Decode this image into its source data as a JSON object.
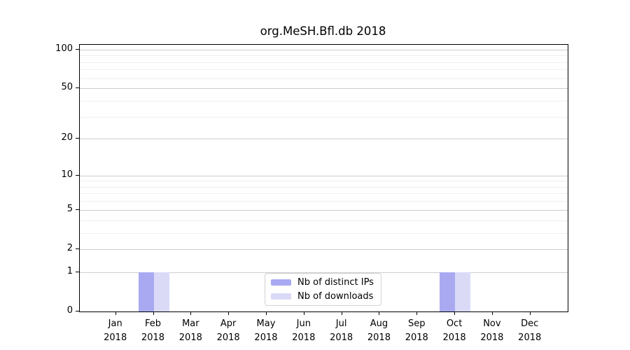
{
  "title": "org.MeSH.Bfl.db 2018",
  "chart_data": {
    "type": "bar",
    "title": "org.MeSH.Bfl.db 2018",
    "categories": [
      "Jan",
      "Feb",
      "Mar",
      "Apr",
      "May",
      "Jun",
      "Jul",
      "Aug",
      "Sep",
      "Oct",
      "Nov",
      "Dec"
    ],
    "category_year": "2018",
    "series": [
      {
        "name": "Nb of distinct IPs",
        "color": "#a9a9f2",
        "values": [
          0,
          1,
          0,
          0,
          0,
          0,
          0,
          0,
          0,
          1,
          0,
          0
        ]
      },
      {
        "name": "Nb of downloads",
        "color": "#dadaf7",
        "values": [
          0,
          1,
          0,
          0,
          0,
          0,
          0,
          0,
          0,
          1,
          0,
          0
        ]
      }
    ],
    "y_axis": {
      "scale": "log10(value+1)",
      "ticks": [
        0,
        1,
        2,
        5,
        10,
        20,
        50,
        100
      ],
      "minor_gridlines": [
        3,
        4,
        6,
        7,
        8,
        9,
        30,
        40,
        60,
        70,
        80,
        90
      ],
      "ylim": [
        0,
        109
      ]
    },
    "x_axis": {
      "label_line2": "2018"
    },
    "grid": "horizontal",
    "legend_position": "lower center"
  }
}
